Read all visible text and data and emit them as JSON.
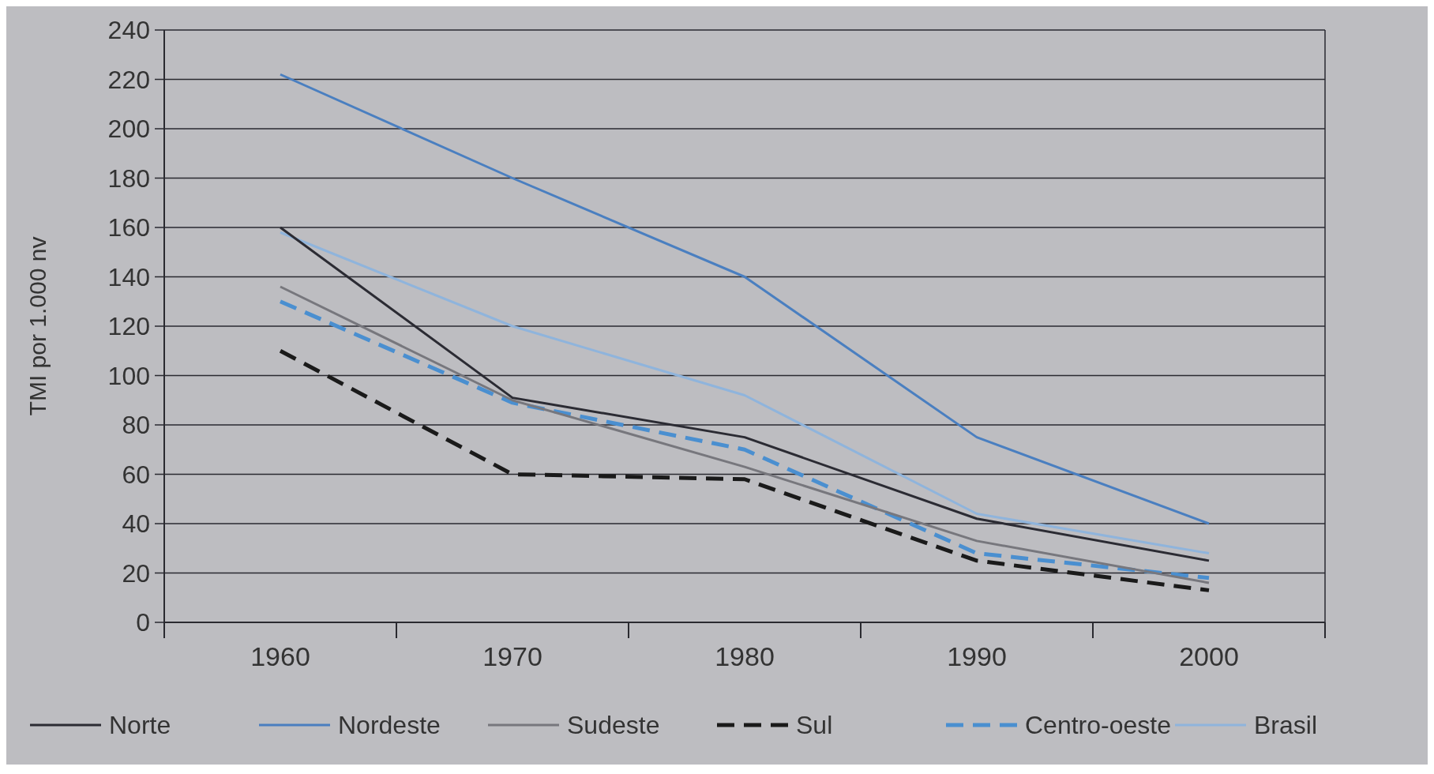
{
  "chart_data": {
    "type": "line",
    "ylabel": "TMI por 1.000 nv",
    "categories": [
      "1960",
      "1970",
      "1980",
      "1990",
      "2000"
    ],
    "ylim": [
      0,
      240
    ],
    "yticks": [
      0,
      20,
      40,
      60,
      80,
      100,
      120,
      140,
      160,
      180,
      200,
      220,
      240
    ],
    "grid": "y",
    "legend": "bottom",
    "series": [
      {
        "name": "Norte",
        "color": "#2b2b33",
        "values": [
          160,
          91,
          75,
          42,
          25
        ]
      },
      {
        "name": "Nordeste",
        "color": "#4a7fc0",
        "values": [
          222,
          180,
          140,
          75,
          40
        ]
      },
      {
        "name": "Sudeste",
        "color": "#77777d",
        "values": [
          136,
          90,
          63,
          33,
          16
        ]
      },
      {
        "name": "Sul",
        "color": "#1a1a1a",
        "values": [
          110,
          60,
          58,
          25,
          13
        ],
        "line_style": "dashed"
      },
      {
        "name": "Centro-oeste",
        "color": "#4a8fd0",
        "values": [
          130,
          89,
          70,
          28,
          18
        ],
        "line_style": "dashed"
      },
      {
        "name": "Brasil",
        "color": "#8fb4dc",
        "values": [
          158,
          120,
          92,
          44,
          28
        ]
      }
    ]
  }
}
